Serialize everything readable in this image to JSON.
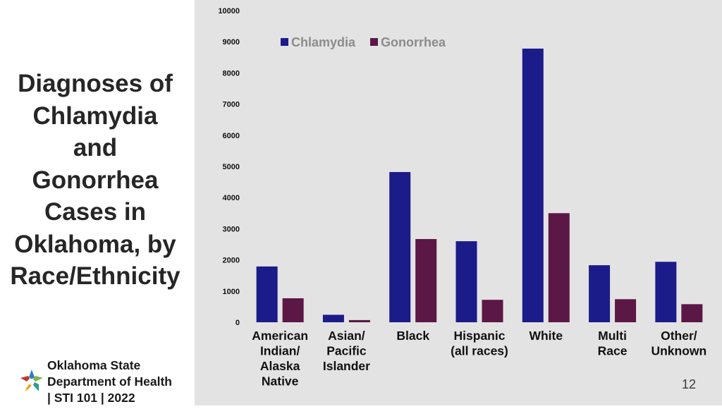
{
  "slide": {
    "title_lines": [
      "Diagnoses of",
      "Chlamydia",
      "and",
      "Gonorrhea",
      "Cases in",
      "Oklahoma, by",
      "Race/Ethnicity"
    ],
    "org_lines": [
      "Oklahoma State",
      "Department of Health",
      "| STI 101 | 2022"
    ],
    "page_number": "12",
    "logo_icon": "oklahoma-state-department-of-health-logo-icon"
  },
  "colors": {
    "chlamydia": "#1b1b8a",
    "gonorrhea": "#5b1745",
    "chart_background": "#e3e3e3",
    "axis_text": "#111111",
    "legend_text": "#8c8c8c"
  },
  "chart_data": {
    "type": "bar",
    "title": "",
    "xlabel": "",
    "ylabel": "",
    "categories": [
      [
        "American",
        "Indian/",
        "Alaska",
        "Native"
      ],
      [
        "Asian/",
        "Pacific",
        "Islander"
      ],
      [
        "Black"
      ],
      [
        "Hispanic",
        "(all races)"
      ],
      [
        "White"
      ],
      [
        "Multi",
        "Race"
      ],
      [
        "Other/",
        "Unknown"
      ]
    ],
    "series": [
      {
        "name": "Chlamydia",
        "values": [
          1790,
          240,
          4820,
          2600,
          8780,
          1830,
          1940
        ]
      },
      {
        "name": "Gonorrhea",
        "values": [
          770,
          70,
          2670,
          720,
          3500,
          740,
          580
        ]
      }
    ],
    "ylim": [
      0,
      10000
    ],
    "yticks": [
      0,
      1000,
      2000,
      3000,
      4000,
      5000,
      6000,
      7000,
      8000,
      9000,
      10000
    ],
    "grid": false,
    "legend_position": "top-left"
  }
}
